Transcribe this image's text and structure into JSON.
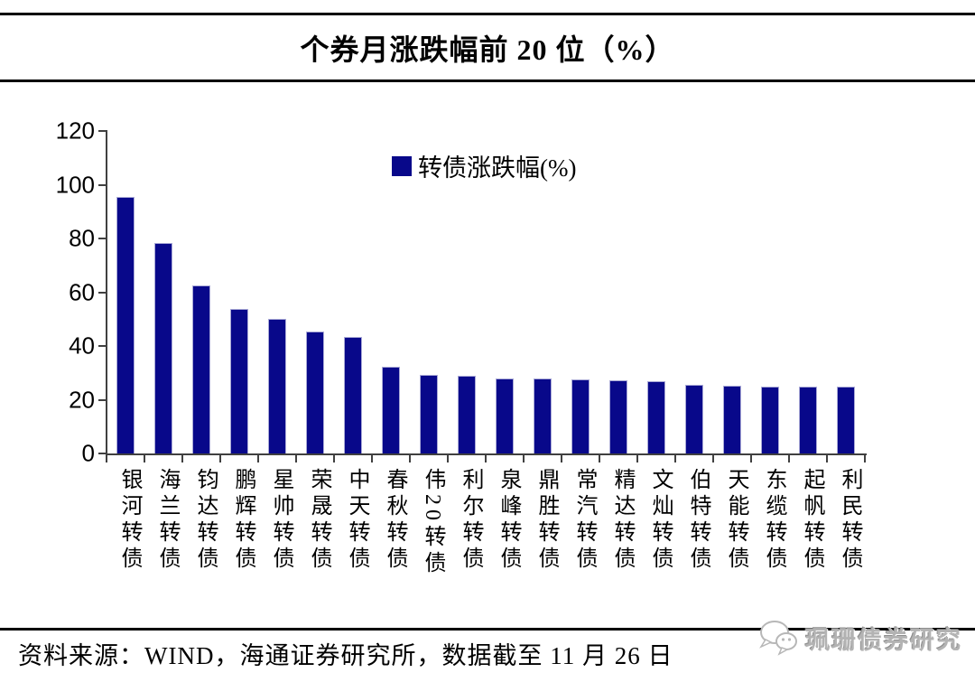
{
  "title": "个券月涨跌幅前 20 位（%）",
  "chart_data": {
    "type": "bar",
    "title": "个券月涨跌幅前 20 位（%）",
    "legend": [
      "转债涨跌幅(%)"
    ],
    "legend_position": "top-center-inside",
    "categories": [
      "银河转债",
      "海兰转债",
      "钧达转债",
      "鹏辉转债",
      "星帅转债",
      "荣晟转债",
      "中天转债",
      "春秋转债",
      "伟20转债",
      "利尔转债",
      "泉峰转债",
      "鼎胜转债",
      "常汽转债",
      "精达转债",
      "文灿转债",
      "伯特转债",
      "天能转债",
      "东缆转债",
      "起帆转债",
      "利民转债"
    ],
    "values": [
      95.5,
      78.3,
      62.5,
      53.8,
      50.0,
      45.4,
      43.3,
      32.2,
      29.3,
      29.0,
      28.0,
      27.9,
      27.4,
      27.2,
      26.9,
      25.6,
      25.2,
      25.0,
      24.9,
      24.8
    ],
    "xlabel": "",
    "ylabel": "",
    "ylim": [
      0,
      120
    ],
    "yticks": [
      0,
      20,
      40,
      60,
      80,
      100,
      120
    ],
    "grid": false,
    "bar_color": "#08088A",
    "axis_color": "#404040"
  },
  "source": {
    "text": "资料来源：WIND，海通证券研究所，数据截至 11 月 26 日"
  },
  "watermark": {
    "text": "珮珊债券研究",
    "icon": "wechat-chat-bubbles-icon",
    "color": "#b3b3b3"
  }
}
